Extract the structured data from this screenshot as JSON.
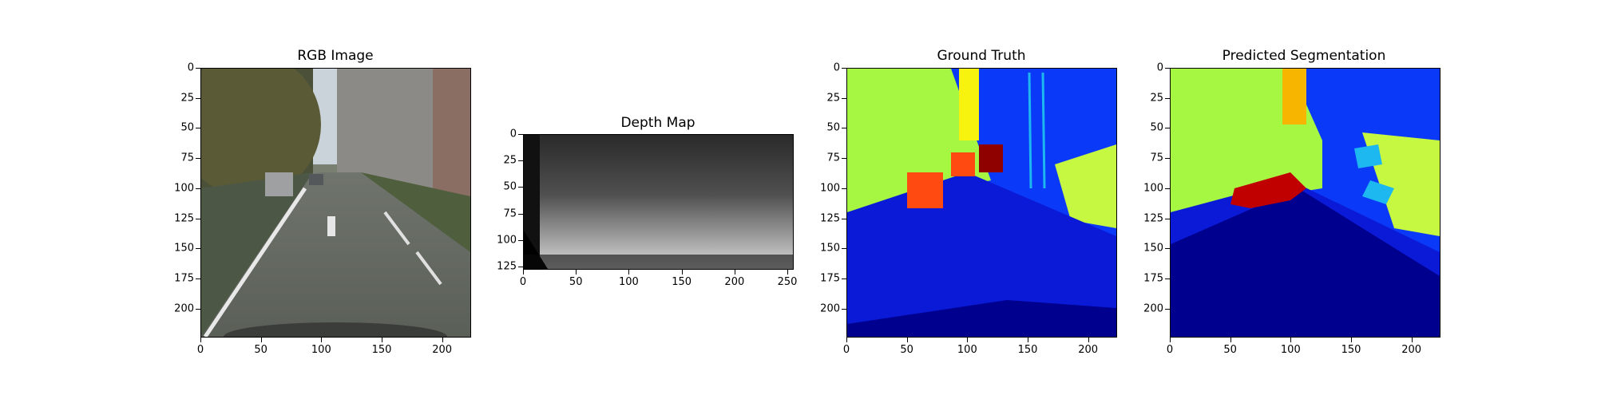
{
  "panels": [
    {
      "id": "rgb",
      "title": "RGB Image",
      "x_ticks": [
        "0",
        "50",
        "100",
        "150",
        "200"
      ],
      "y_ticks": [
        "0",
        "25",
        "50",
        "75",
        "100",
        "125",
        "150",
        "175",
        "200"
      ]
    },
    {
      "id": "depth",
      "title": "Depth Map",
      "x_ticks": [
        "0",
        "50",
        "100",
        "150",
        "200",
        "250"
      ],
      "y_ticks": [
        "0",
        "25",
        "50",
        "75",
        "100",
        "125"
      ]
    },
    {
      "id": "gt",
      "title": "Ground Truth",
      "x_ticks": [
        "0",
        "50",
        "100",
        "150",
        "200"
      ],
      "y_ticks": [
        "0",
        "25",
        "50",
        "75",
        "100",
        "125",
        "150",
        "175",
        "200"
      ]
    },
    {
      "id": "pred",
      "title": "Predicted Segmentation",
      "x_ticks": [
        "0",
        "50",
        "100",
        "150",
        "200"
      ],
      "y_ticks": [
        "0",
        "25",
        "50",
        "75",
        "100",
        "125",
        "150",
        "175",
        "200"
      ]
    }
  ],
  "colors": {
    "road": "#00008f",
    "sidewalk": "#0a1ad6",
    "vegetation": "#a6f741",
    "sky_building": "#0a3af7",
    "yellow": "#f7f20e",
    "car_red": "#c00000",
    "orange": "#ff4a12",
    "cyan": "#1db8f0"
  }
}
